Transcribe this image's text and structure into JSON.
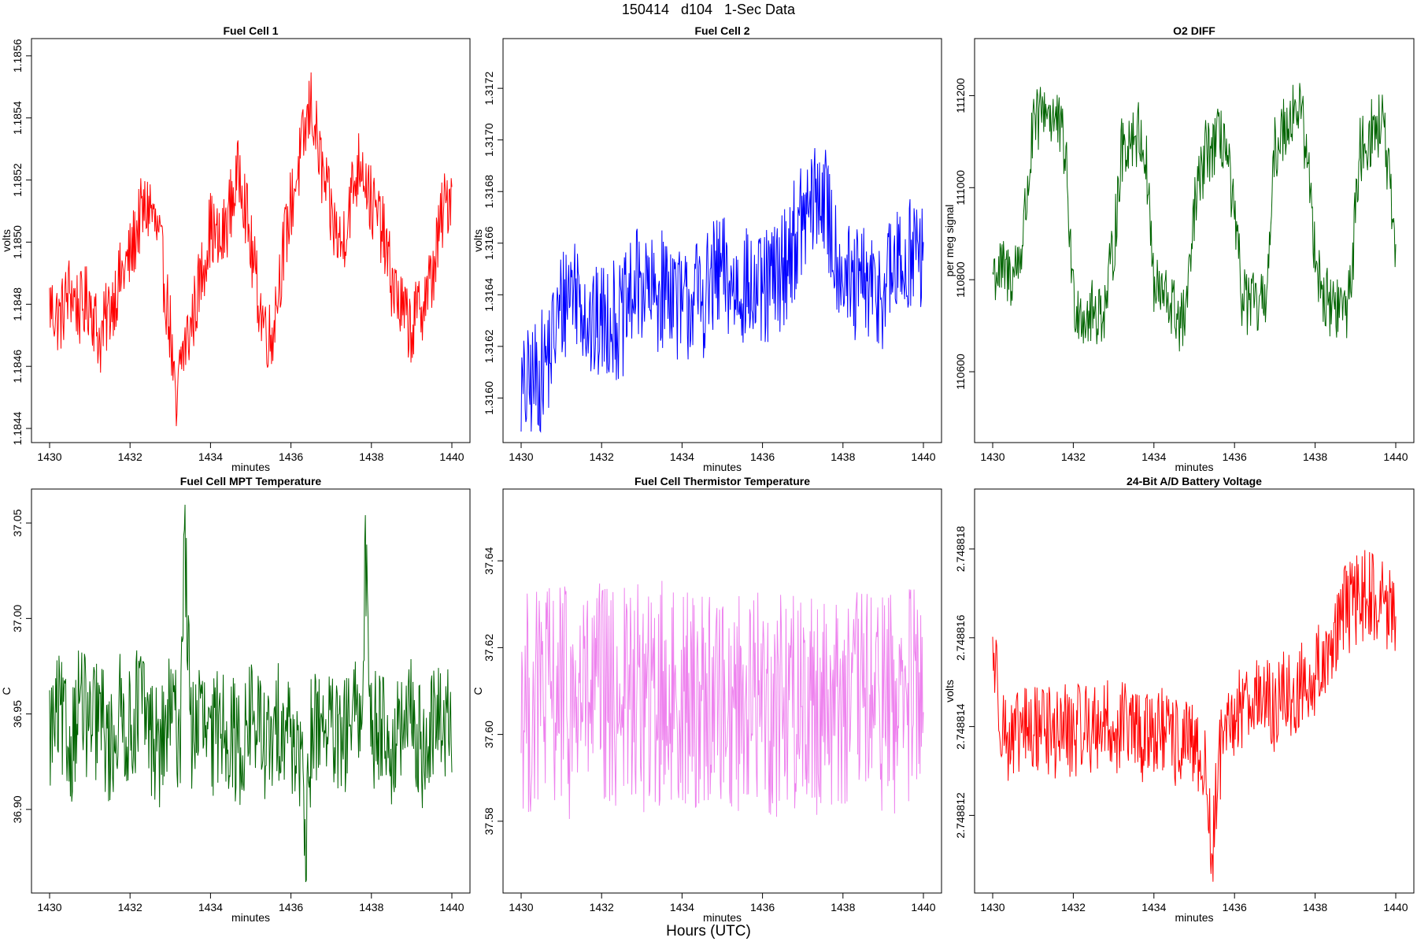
{
  "figure": {
    "title": "150414   d104   1-Sec Data",
    "x_caption": "Hours (UTC)"
  },
  "chart_data": [
    {
      "type": "line",
      "title": "Fuel Cell 1",
      "xlabel": "minutes",
      "ylabel": "volts",
      "color": "#ff0000",
      "xlim": [
        1430,
        1440
      ],
      "ylim": [
        1.18439,
        1.18562
      ],
      "xticks": [
        1430,
        1432,
        1434,
        1436,
        1438,
        1440
      ],
      "yticks": [
        1.1844,
        1.1846,
        1.1848,
        1.185,
        1.1852,
        1.1854,
        1.1856
      ],
      "ytick_labels": [
        "1.1844",
        "1.1846",
        "1.1848",
        "1.1850",
        "1.1852",
        "1.1854",
        "1.1856"
      ],
      "series": [
        {
          "x": [
            1430.0,
            1430.25,
            1430.5,
            1430.75,
            1431.0,
            1431.25,
            1431.5,
            1431.75,
            1432.0,
            1432.25,
            1432.5,
            1432.75,
            1433.0,
            1433.15,
            1433.25,
            1433.5,
            1433.75,
            1434.0,
            1434.25,
            1434.5,
            1434.75,
            1435.0,
            1435.25,
            1435.5,
            1435.75,
            1436.0,
            1436.25,
            1436.5,
            1436.75,
            1437.0,
            1437.25,
            1437.5,
            1437.75,
            1438.0,
            1438.25,
            1438.5,
            1438.75,
            1439.0,
            1439.25,
            1439.5,
            1439.75,
            1440.0
          ],
          "y": [
            1.1848,
            1.18475,
            1.18485,
            1.18478,
            1.18482,
            1.18468,
            1.18479,
            1.18488,
            1.18495,
            1.18508,
            1.18512,
            1.18498,
            1.18472,
            1.18441,
            1.18462,
            1.18472,
            1.18488,
            1.18505,
            1.18498,
            1.18512,
            1.18524,
            1.18498,
            1.18478,
            1.18468,
            1.18492,
            1.18512,
            1.18528,
            1.18545,
            1.18524,
            1.18508,
            1.18498,
            1.18515,
            1.18528,
            1.18512,
            1.18505,
            1.18488,
            1.18478,
            1.18472,
            1.1848,
            1.18488,
            1.18508,
            1.18518
          ]
        }
      ]
    },
    {
      "type": "line",
      "title": "Fuel Cell 2",
      "xlabel": "minutes",
      "ylabel": "volts",
      "color": "#0000ff",
      "xlim": [
        1430,
        1440
      ],
      "ylim": [
        1.31587,
        1.31735
      ],
      "xticks": [
        1430,
        1432,
        1434,
        1436,
        1438,
        1440
      ],
      "yticks": [
        1.316,
        1.3162,
        1.3164,
        1.3166,
        1.3168,
        1.317,
        1.3172
      ],
      "ytick_labels": [
        "1.3160",
        "1.3162",
        "1.3164",
        "1.3166",
        "1.3168",
        "1.3170",
        "1.3172"
      ],
      "series": [
        {
          "x": [
            1430.0,
            1430.25,
            1430.5,
            1430.75,
            1431.0,
            1431.25,
            1431.5,
            1431.75,
            1432.0,
            1432.25,
            1432.5,
            1432.75,
            1433.0,
            1433.25,
            1433.5,
            1433.75,
            1434.0,
            1434.25,
            1434.5,
            1434.75,
            1435.0,
            1435.25,
            1435.5,
            1435.75,
            1436.0,
            1436.25,
            1436.5,
            1436.75,
            1437.0,
            1437.25,
            1437.5,
            1437.75,
            1438.0,
            1438.25,
            1438.5,
            1438.75,
            1439.0,
            1439.25,
            1439.5,
            1439.75,
            1440.0
          ],
          "y": [
            1.316,
            1.31605,
            1.3161,
            1.3162,
            1.31635,
            1.31645,
            1.3164,
            1.31625,
            1.3163,
            1.31632,
            1.31628,
            1.3164,
            1.31645,
            1.31638,
            1.31642,
            1.31645,
            1.31632,
            1.3164,
            1.31638,
            1.31645,
            1.31648,
            1.31642,
            1.31645,
            1.3164,
            1.3164,
            1.31645,
            1.3165,
            1.3166,
            1.31668,
            1.31675,
            1.3168,
            1.3166,
            1.3165,
            1.3164,
            1.31645,
            1.3164,
            1.31642,
            1.3165,
            1.3165,
            1.3166,
            1.3165
          ]
        }
      ]
    },
    {
      "type": "line",
      "title": "O2 DIFF",
      "xlabel": "minutes",
      "ylabel": "per meg signal",
      "color": "#006400",
      "xlim": [
        1430,
        1440
      ],
      "ylim": [
        110470,
        111300
      ],
      "xticks": [
        1430,
        1432,
        1434,
        1436,
        1438,
        1440
      ],
      "yticks": [
        110600,
        110800,
        111000,
        111200
      ],
      "ytick_labels": [
        "110600",
        "110800",
        "111000",
        "111200"
      ],
      "series": [
        {
          "x": [
            1430.0,
            1430.5,
            1430.7,
            1430.85,
            1431.0,
            1431.3,
            1431.6,
            1431.8,
            1431.9,
            1432.0,
            1432.3,
            1432.6,
            1432.8,
            1433.0,
            1433.2,
            1433.5,
            1433.7,
            1433.85,
            1434.0,
            1434.4,
            1434.7,
            1434.85,
            1435.0,
            1435.3,
            1435.6,
            1435.75,
            1435.9,
            1436.2,
            1436.5,
            1436.7,
            1436.85,
            1437.0,
            1437.3,
            1437.6,
            1437.8,
            1437.95,
            1438.2,
            1438.5,
            1438.8,
            1438.95,
            1439.1,
            1439.4,
            1439.7,
            1439.85,
            1440.0
          ],
          "y": [
            110820,
            110810,
            110860,
            110980,
            111120,
            111180,
            111140,
            111080,
            110920,
            110760,
            110720,
            110730,
            110740,
            110870,
            111080,
            111120,
            111110,
            111020,
            110780,
            110750,
            110700,
            110760,
            110950,
            111080,
            111100,
            111110,
            111000,
            110760,
            110740,
            110740,
            110830,
            111080,
            111150,
            111180,
            111080,
            110900,
            110760,
            110740,
            110740,
            110870,
            111080,
            111120,
            111140,
            111000,
            110810
          ]
        }
      ]
    },
    {
      "type": "line",
      "title": "Fuel Cell MPT Temperature",
      "xlabel": "minutes",
      "ylabel": "C",
      "color": "#006400",
      "xlim": [
        1430,
        1440
      ],
      "ylim": [
        36.862,
        37.062
      ],
      "xticks": [
        1430,
        1432,
        1434,
        1436,
        1438,
        1440
      ],
      "yticks": [
        36.9,
        36.95,
        37.0,
        37.05
      ],
      "ytick_labels": [
        "36.90",
        "36.95",
        "37.00",
        "37.05"
      ],
      "series": [
        {
          "x": [
            1430.0,
            1430.25,
            1430.5,
            1430.75,
            1431.0,
            1431.25,
            1431.5,
            1431.75,
            1432.0,
            1432.25,
            1432.5,
            1432.75,
            1433.0,
            1433.25,
            1433.35,
            1433.5,
            1433.75,
            1434.0,
            1434.25,
            1434.5,
            1434.75,
            1435.0,
            1435.25,
            1435.5,
            1435.75,
            1436.0,
            1436.25,
            1436.35,
            1436.5,
            1436.75,
            1437.0,
            1437.25,
            1437.5,
            1437.75,
            1437.85,
            1438.0,
            1438.25,
            1438.5,
            1438.75,
            1439.0,
            1439.25,
            1439.5,
            1439.75,
            1440.0
          ],
          "y": [
            36.94,
            36.95,
            36.93,
            36.96,
            36.94,
            36.95,
            36.93,
            36.95,
            36.94,
            36.96,
            36.94,
            36.93,
            36.95,
            36.94,
            37.055,
            36.94,
            36.95,
            36.93,
            36.95,
            36.94,
            36.93,
            36.95,
            36.94,
            36.93,
            36.95,
            36.94,
            36.93,
            36.867,
            36.94,
            36.95,
            36.94,
            36.93,
            36.95,
            36.94,
            37.04,
            36.94,
            36.95,
            36.93,
            36.94,
            36.95,
            36.93,
            36.94,
            36.95,
            36.94
          ]
        }
      ]
    },
    {
      "type": "line",
      "title": "Fuel Cell Thermistor Temperature",
      "xlabel": "minutes",
      "ylabel": "C",
      "color": "#ee82ee",
      "xlim": [
        1430,
        1440
      ],
      "ylim": [
        37.566,
        37.654
      ],
      "xticks": [
        1430,
        1432,
        1434,
        1436,
        1438,
        1440
      ],
      "yticks": [
        37.58,
        37.6,
        37.62,
        37.64
      ],
      "ytick_labels": [
        "37.58",
        "37.60",
        "37.62",
        "37.64"
      ],
      "series": [
        {
          "x": [
            1430.0,
            1430.25,
            1430.5,
            1430.75,
            1431.0,
            1431.25,
            1431.5,
            1431.75,
            1432.0,
            1432.25,
            1432.5,
            1432.75,
            1433.0,
            1433.25,
            1433.5,
            1433.75,
            1434.0,
            1434.25,
            1434.5,
            1434.75,
            1435.0,
            1435.25,
            1435.5,
            1435.75,
            1436.0,
            1436.25,
            1436.5,
            1436.75,
            1437.0,
            1437.25,
            1437.5,
            1437.75,
            1438.0,
            1438.25,
            1438.5,
            1438.75,
            1439.0,
            1439.25,
            1439.5,
            1439.75,
            1440.0
          ],
          "y": [
            37.61,
            37.605,
            37.61,
            37.608,
            37.61,
            37.605,
            37.61,
            37.607,
            37.61,
            37.606,
            37.61,
            37.608,
            37.609,
            37.605,
            37.61,
            37.607,
            37.61,
            37.606,
            37.61,
            37.608,
            37.609,
            37.606,
            37.61,
            37.607,
            37.61,
            37.605,
            37.61,
            37.608,
            37.609,
            37.606,
            37.61,
            37.607,
            37.609,
            37.605,
            37.61,
            37.607,
            37.609,
            37.606,
            37.61,
            37.608,
            37.61
          ]
        }
      ]
    },
    {
      "type": "line",
      "title": "24-Bit A/D Battery Voltage",
      "xlabel": "minutes",
      "ylabel": "volts",
      "color": "#ff0000",
      "xlim": [
        1430,
        1440
      ],
      "ylim": [
        2.7488105,
        2.7488191
      ],
      "xticks": [
        1430,
        1432,
        1434,
        1436,
        1438,
        1440
      ],
      "yticks": [
        2.748812,
        2.748814,
        2.748816,
        2.748818
      ],
      "ytick_labels": [
        "2.748812",
        "2.748814",
        "2.748816",
        "2.748818"
      ],
      "series": [
        {
          "x": [
            1430.0,
            1430.25,
            1430.5,
            1430.75,
            1431.0,
            1431.25,
            1431.5,
            1431.75,
            1432.0,
            1432.25,
            1432.5,
            1432.75,
            1433.0,
            1433.25,
            1433.5,
            1433.75,
            1434.0,
            1434.25,
            1434.5,
            1434.75,
            1435.0,
            1435.25,
            1435.45,
            1435.6,
            1435.75,
            1436.0,
            1436.25,
            1436.5,
            1436.75,
            1437.0,
            1437.25,
            1437.5,
            1437.75,
            1438.0,
            1438.25,
            1438.5,
            1438.75,
            1439.0,
            1439.25,
            1439.5,
            1439.75,
            1440.0
          ],
          "y": [
            2.7488158,
            2.748814,
            2.7488135,
            2.748814,
            2.7488138,
            2.7488142,
            2.7488137,
            2.748814,
            2.7488138,
            2.7488141,
            2.7488139,
            2.7488142,
            2.7488138,
            2.7488141,
            2.7488139,
            2.7488137,
            2.748814,
            2.7488138,
            2.7488136,
            2.7488137,
            2.7488134,
            2.7488132,
            2.748811,
            2.7488133,
            2.7488135,
            2.7488142,
            2.7488146,
            2.7488148,
            2.7488145,
            2.7488144,
            2.7488147,
            2.7488146,
            2.748815,
            2.7488152,
            2.7488155,
            2.7488162,
            2.7488166,
            2.7488168,
            2.748817,
            2.7488169,
            2.7488168,
            2.7488162
          ]
        }
      ]
    }
  ]
}
